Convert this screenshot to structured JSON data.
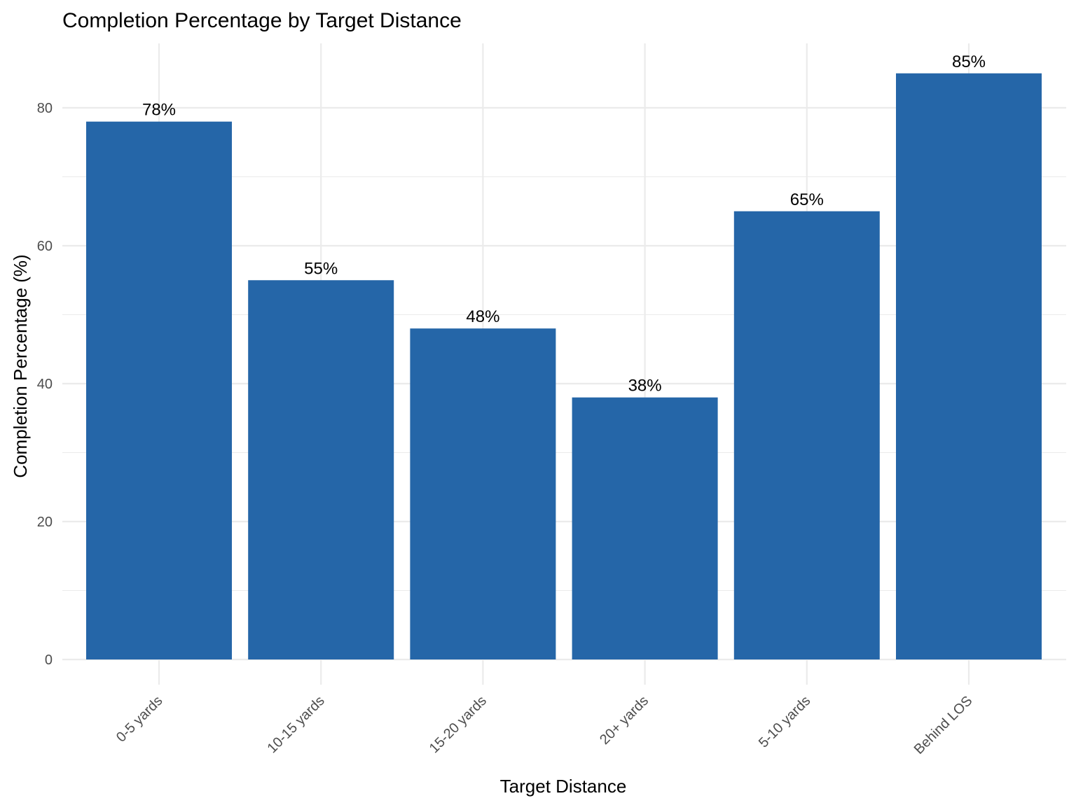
{
  "chart_data": {
    "type": "bar",
    "title": "Completion Percentage by Target Distance",
    "xlabel": "Target Distance",
    "ylabel": "Completion Percentage (%)",
    "categories": [
      "0-5 yards",
      "10-15 yards",
      "15-20 yards",
      "20+ yards",
      "5-10 yards",
      "Behind LOS"
    ],
    "values": [
      78,
      55,
      48,
      38,
      65,
      85
    ],
    "data_labels": [
      "78%",
      "55%",
      "48%",
      "38%",
      "65%",
      "85%"
    ],
    "ylim": [
      0,
      89.25
    ],
    "yticks": [
      0,
      20,
      40,
      60,
      80
    ],
    "ytick_labels": [
      "0",
      "20",
      "40",
      "60",
      "80"
    ],
    "grid": true,
    "legend": "none",
    "colors": {
      "bar": "#2566A8",
      "grid": "#EBEBEB",
      "tick_text": "#4D4D4D",
      "text": "#000000"
    }
  }
}
